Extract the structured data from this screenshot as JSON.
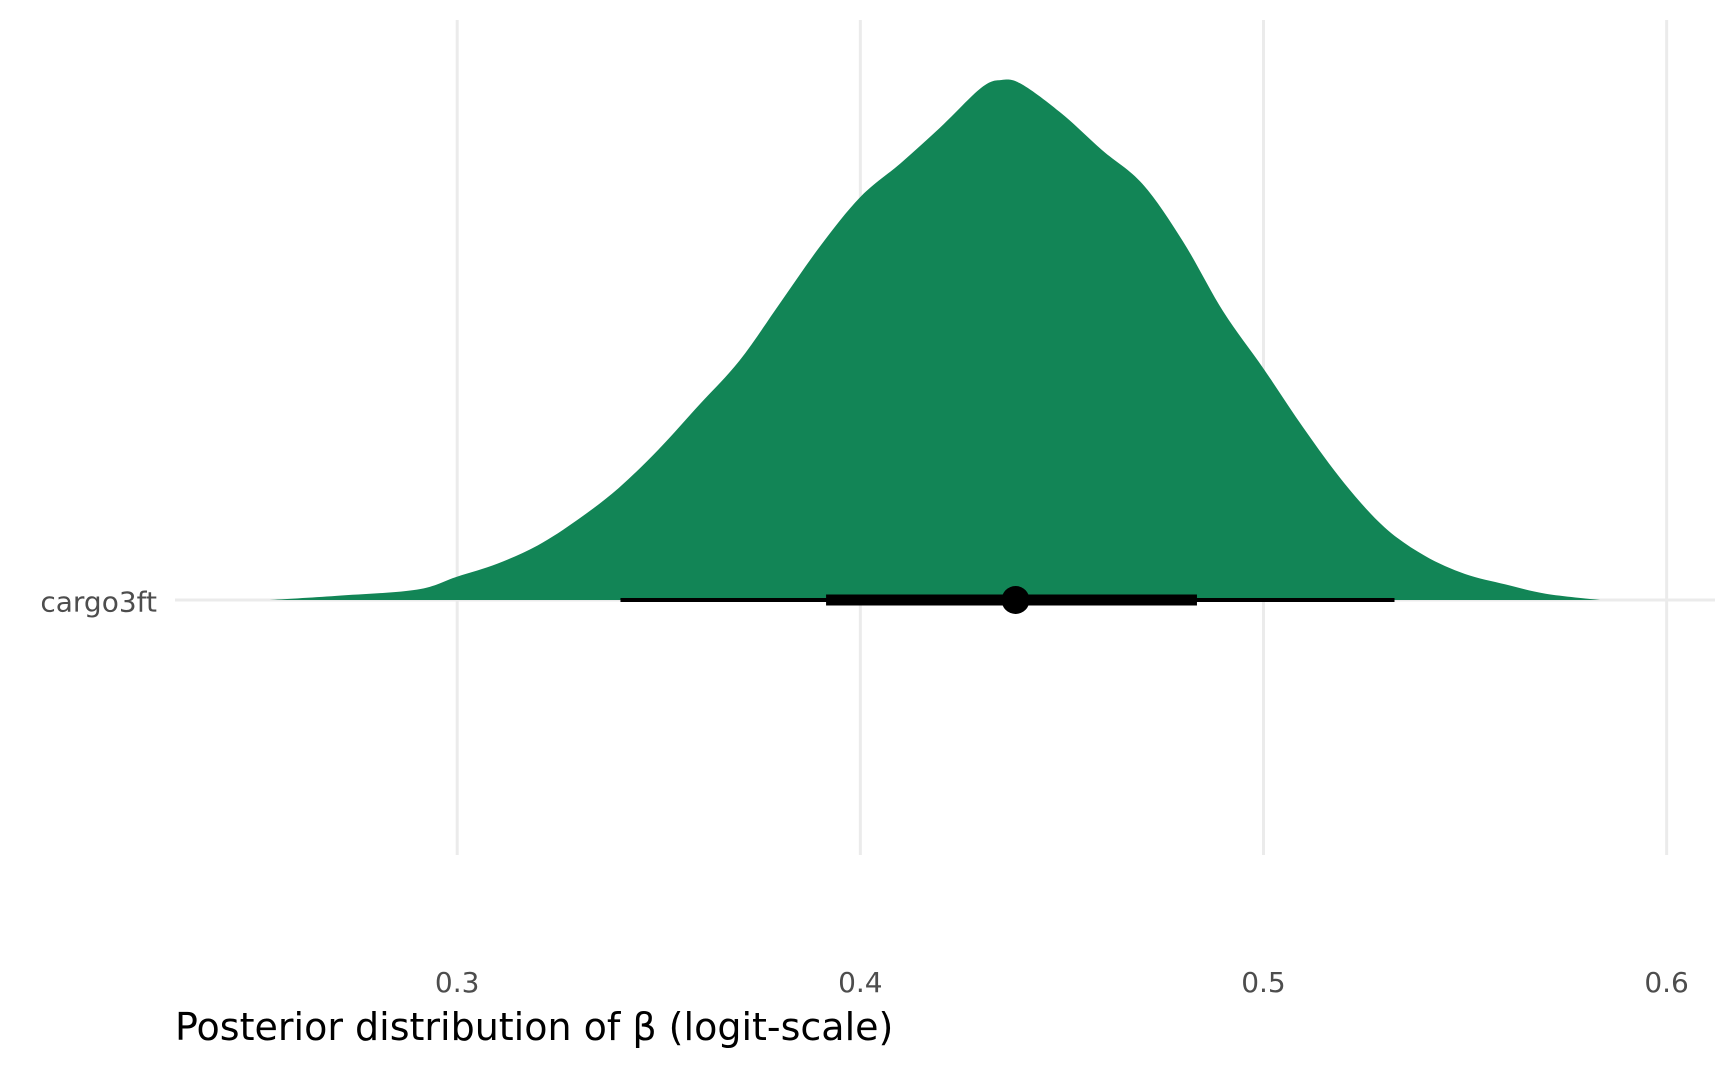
{
  "chart_data": {
    "type": "area",
    "subtype": "posterior-density-halfeye",
    "title": "",
    "xlabel": "Posterior distribution of β (logit-scale)",
    "ylabel": "",
    "xlim": [
      0.23,
      0.612
    ],
    "x_ticks": [
      0.3,
      0.4,
      0.5,
      0.6
    ],
    "x_tick_labels": [
      "0.3",
      "0.4",
      "0.5",
      "0.6"
    ],
    "categories": [
      "cargo3ft"
    ],
    "grid": true,
    "legend": "none",
    "fill_color": "#128556",
    "interval_color": "#000000",
    "density": {
      "x": [
        0.2535,
        0.27,
        0.29,
        0.3,
        0.31,
        0.32,
        0.33,
        0.34,
        0.35,
        0.36,
        0.37,
        0.38,
        0.39,
        0.4,
        0.41,
        0.42,
        0.43,
        0.435,
        0.44,
        0.45,
        0.46,
        0.47,
        0.48,
        0.49,
        0.5,
        0.51,
        0.52,
        0.53,
        0.54,
        0.55,
        0.56,
        0.57,
        0.5835
      ],
      "y": [
        0.0,
        0.008,
        0.02,
        0.045,
        0.07,
        0.105,
        0.155,
        0.215,
        0.29,
        0.375,
        0.46,
        0.57,
        0.68,
        0.775,
        0.84,
        0.91,
        0.985,
        1.0,
        0.992,
        0.935,
        0.865,
        0.8,
        0.69,
        0.555,
        0.445,
        0.33,
        0.225,
        0.14,
        0.085,
        0.05,
        0.03,
        0.012,
        0.0
      ]
    },
    "point_estimate": 0.4385,
    "interval_66": [
      0.3915,
      0.4835
    ],
    "interval_95": [
      0.3405,
      0.5325
    ]
  }
}
